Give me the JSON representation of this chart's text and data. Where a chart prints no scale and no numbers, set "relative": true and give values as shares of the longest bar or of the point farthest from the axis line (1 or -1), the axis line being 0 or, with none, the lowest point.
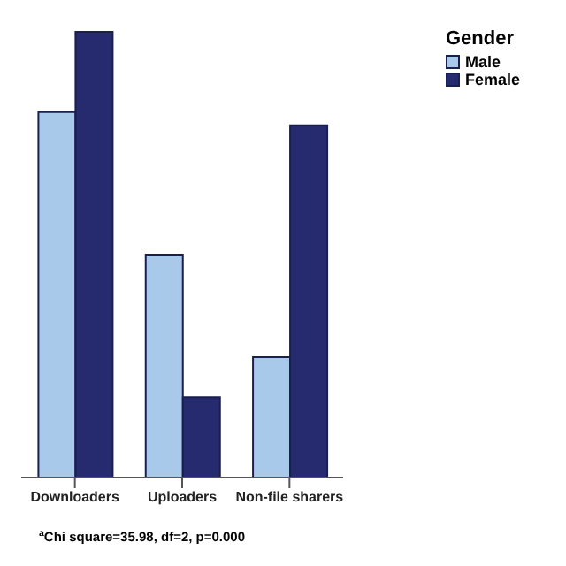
{
  "chart_data": {
    "type": "bar",
    "categories": [
      "Downloaders",
      "Uploaders",
      "Non-file sharers"
    ],
    "relative": true,
    "legend_title": "Gender",
    "legend": "right",
    "series": [
      {
        "name": "Male",
        "color": "#a9c9eb",
        "values": [
          0.82,
          0.5,
          0.27
        ]
      },
      {
        "name": "Female",
        "color": "#262a6e",
        "values": [
          1,
          0.18,
          0.79
        ]
      }
    ],
    "annotations": [
      "$^{a}$Chi square=35.98, df=2, p=0.000"
    ]
  }
}
